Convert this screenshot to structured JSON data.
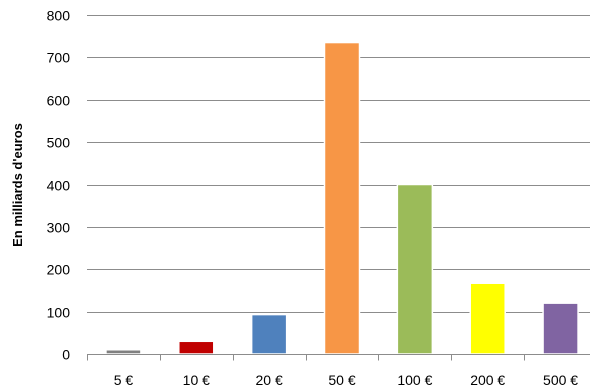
{
  "chart_data": {
    "type": "bar",
    "title": "",
    "xlabel": "",
    "ylabel": "En milliards d'euros",
    "categories": [
      "5 €",
      "10 €",
      "20 €",
      "50 €",
      "100 €",
      "200 €",
      "500 €"
    ],
    "values": [
      10,
      30,
      93,
      735,
      400,
      167,
      120
    ],
    "colors": [
      "#808080",
      "#c00000",
      "#4f81bd",
      "#f79646",
      "#9bbb59",
      "#ffff00",
      "#8064a2"
    ],
    "ylim": [
      0,
      800
    ],
    "yticks": [
      0,
      100,
      200,
      300,
      400,
      500,
      600,
      700,
      800
    ],
    "grid": true,
    "legend": "none"
  }
}
